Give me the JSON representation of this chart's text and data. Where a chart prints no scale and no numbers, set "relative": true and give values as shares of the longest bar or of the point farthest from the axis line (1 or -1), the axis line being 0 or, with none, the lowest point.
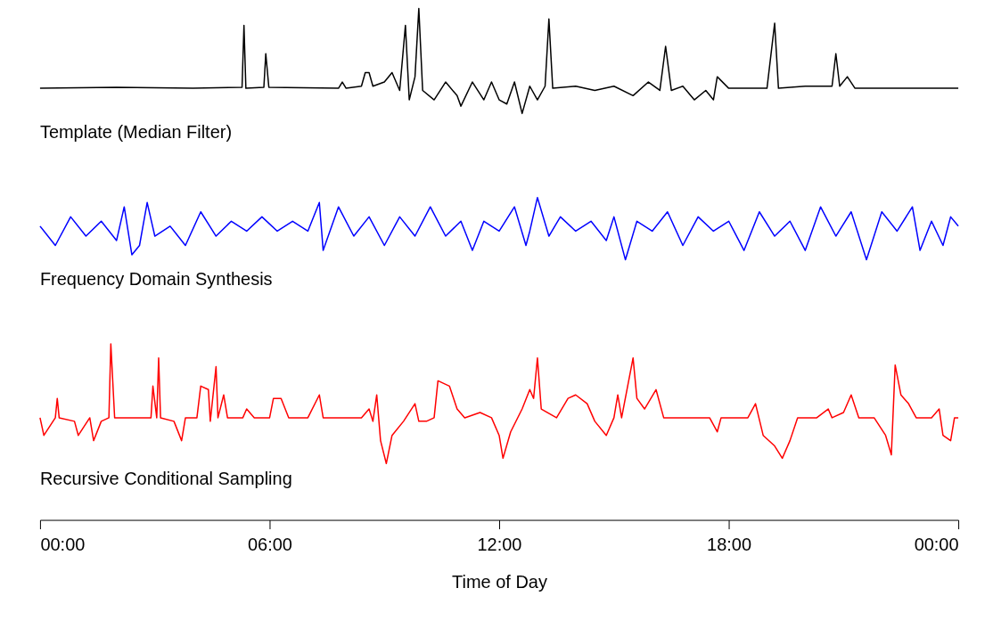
{
  "chart_data": [
    {
      "type": "line",
      "relative": true,
      "xlim": [
        0,
        24
      ],
      "tick_labels": false,
      "series": [
        {
          "name": "Template (Median Filter)",
          "color": "#000000",
          "x": [
            0,
            2,
            4,
            5.28,
            5.33,
            5.38,
            5.85,
            5.9,
            5.98,
            7.8,
            7.9,
            8.0,
            8.4,
            8.5,
            8.6,
            8.7,
            9.0,
            9.2,
            9.4,
            9.55,
            9.65,
            9.8,
            9.9,
            10.0,
            10.3,
            10.6,
            10.9,
            11.0,
            11.3,
            11.6,
            11.8,
            12.0,
            12.2,
            12.4,
            12.6,
            12.8,
            13.0,
            13.2,
            13.3,
            13.4,
            14.0,
            14.5,
            15.0,
            15.5,
            15.9,
            16.2,
            16.35,
            16.5,
            16.8,
            17.1,
            17.4,
            17.6,
            17.7,
            18.0,
            19.0,
            19.2,
            19.3,
            20.0,
            20.7,
            20.8,
            20.9,
            21.1,
            21.3,
            24
          ],
          "values": [
            0.24,
            0.25,
            0.24,
            0.25,
            0.84,
            0.24,
            0.25,
            0.57,
            0.25,
            0.24,
            0.3,
            0.24,
            0.26,
            0.39,
            0.39,
            0.26,
            0.3,
            0.39,
            0.22,
            0.84,
            0.13,
            0.35,
            1,
            0.22,
            0.13,
            0.3,
            0.17,
            0.07,
            0.3,
            0.13,
            0.3,
            0.13,
            0.09,
            0.3,
            0,
            0.26,
            0.13,
            0.26,
            0.9,
            0.24,
            0.26,
            0.22,
            0.26,
            0.17,
            0.3,
            0.22,
            0.64,
            0.22,
            0.26,
            0.13,
            0.22,
            0.13,
            0.35,
            0.24,
            0.24,
            0.86,
            0.24,
            0.26,
            0.26,
            0.57,
            0.26,
            0.35,
            0.24,
            0.24
          ]
        }
      ]
    },
    {
      "type": "line",
      "relative": true,
      "xlim": [
        0,
        24
      ],
      "tick_labels": false,
      "series": [
        {
          "name": "Frequency Domain Synthesis",
          "color": "#0000ff",
          "x": [
            0,
            0.4,
            0.8,
            1.2,
            1.6,
            2.0,
            2.2,
            2.4,
            2.6,
            2.8,
            3.0,
            3.4,
            3.8,
            4.2,
            4.6,
            5.0,
            5.4,
            5.8,
            6.2,
            6.6,
            7.0,
            7.3,
            7.4,
            7.8,
            8.2,
            8.6,
            9.0,
            9.4,
            9.8,
            10.2,
            10.6,
            11.0,
            11.3,
            11.6,
            12.0,
            12.4,
            12.7,
            12.8,
            13.0,
            13.3,
            13.6,
            14.0,
            14.4,
            14.8,
            15.0,
            15.3,
            15.6,
            16.0,
            16.4,
            16.8,
            17.2,
            17.6,
            18.0,
            18.4,
            18.8,
            19.2,
            19.6,
            20.0,
            20.4,
            20.8,
            21.2,
            21.6,
            22.0,
            22.4,
            22.8,
            23.0,
            23.3,
            23.6,
            23.8,
            24.0
          ],
          "values": [
            0.54,
            0.23,
            0.69,
            0.38,
            0.62,
            0.31,
            0.85,
            0.08,
            0.23,
            0.92,
            0.38,
            0.54,
            0.23,
            0.77,
            0.38,
            0.62,
            0.46,
            0.69,
            0.46,
            0.62,
            0.46,
            0.92,
            0.15,
            0.85,
            0.38,
            0.69,
            0.23,
            0.69,
            0.38,
            0.85,
            0.38,
            0.62,
            0.15,
            0.62,
            0.46,
            0.85,
            0.23,
            0.46,
            1,
            0.38,
            0.69,
            0.46,
            0.62,
            0.31,
            0.69,
            0,
            0.62,
            0.46,
            0.77,
            0.23,
            0.69,
            0.46,
            0.62,
            0.15,
            0.77,
            0.38,
            0.62,
            0.15,
            0.85,
            0.38,
            0.77,
            0,
            0.77,
            0.46,
            0.85,
            0.15,
            0.62,
            0.23,
            0.69,
            0.54
          ]
        }
      ]
    },
    {
      "type": "line",
      "relative": true,
      "xlabel": "Time of Day",
      "xlim": [
        0,
        24
      ],
      "xticks": [
        {
          "value": 0,
          "label": "00:00"
        },
        {
          "value": 6,
          "label": "06:00"
        },
        {
          "value": 12,
          "label": "12:00"
        },
        {
          "value": 18,
          "label": "18:00"
        },
        {
          "value": 24,
          "label": "00:00"
        }
      ],
      "series": [
        {
          "name": "Recursive Conditional Sampling",
          "color": "#ff0000",
          "x": [
            0,
            0.1,
            0.4,
            0.45,
            0.5,
            0.9,
            1.0,
            1.3,
            1.4,
            1.6,
            1.8,
            1.85,
            1.95,
            2.5,
            2.9,
            2.95,
            3.05,
            3.1,
            3.15,
            3.5,
            3.7,
            3.8,
            4.1,
            4.2,
            4.4,
            4.45,
            4.6,
            4.65,
            4.8,
            4.9,
            5.3,
            5.4,
            5.6,
            6.0,
            6.1,
            6.3,
            6.5,
            7.0,
            7.3,
            7.4,
            8.4,
            8.6,
            8.7,
            8.8,
            8.9,
            9.05,
            9.2,
            9.5,
            9.8,
            9.9,
            10.1,
            10.3,
            10.4,
            10.7,
            10.9,
            11.1,
            11.5,
            11.8,
            12.0,
            12.1,
            12.3,
            12.6,
            12.8,
            12.9,
            13.0,
            13.1,
            13.5,
            13.8,
            14.0,
            14.3,
            14.5,
            14.8,
            15.0,
            15.1,
            15.2,
            15.5,
            15.6,
            15.8,
            16.1,
            16.3,
            17.0,
            17.5,
            17.7,
            17.8,
            18.5,
            18.7,
            18.9,
            19.2,
            19.4,
            19.6,
            19.8,
            20.3,
            20.6,
            20.7,
            21.0,
            21.2,
            21.4,
            21.8,
            22.1,
            22.25,
            22.35,
            22.5,
            22.7,
            22.9,
            23.3,
            23.5,
            23.6,
            23.8,
            23.9,
            24.0
          ],
          "values": [
            0.58,
            0.48,
            0.58,
            0.69,
            0.58,
            0.56,
            0.48,
            0.58,
            0.45,
            0.56,
            0.58,
            1,
            0.58,
            0.58,
            0.58,
            0.76,
            0.58,
            0.92,
            0.58,
            0.56,
            0.45,
            0.58,
            0.58,
            0.76,
            0.74,
            0.56,
            0.87,
            0.58,
            0.71,
            0.58,
            0.58,
            0.63,
            0.58,
            0.58,
            0.69,
            0.69,
            0.58,
            0.58,
            0.71,
            0.58,
            0.58,
            0.63,
            0.56,
            0.71,
            0.45,
            0.32,
            0.48,
            0.56,
            0.66,
            0.56,
            0.56,
            0.58,
            0.79,
            0.76,
            0.63,
            0.58,
            0.61,
            0.58,
            0.48,
            0.35,
            0.5,
            0.63,
            0.74,
            0.69,
            0.92,
            0.63,
            0.58,
            0.69,
            0.71,
            0.66,
            0.56,
            0.48,
            0.58,
            0.71,
            0.58,
            0.92,
            0.69,
            0.63,
            0.74,
            0.58,
            0.58,
            0.58,
            0.5,
            0.58,
            0.58,
            0.66,
            0.48,
            0.42,
            0.35,
            0.45,
            0.58,
            0.58,
            0.63,
            0.58,
            0.61,
            0.71,
            0.58,
            0.58,
            0.48,
            0.37,
            0.88,
            0.71,
            0.66,
            0.58,
            0.58,
            0.63,
            0.48,
            0.45,
            0.58,
            0.58
          ]
        }
      ]
    }
  ]
}
